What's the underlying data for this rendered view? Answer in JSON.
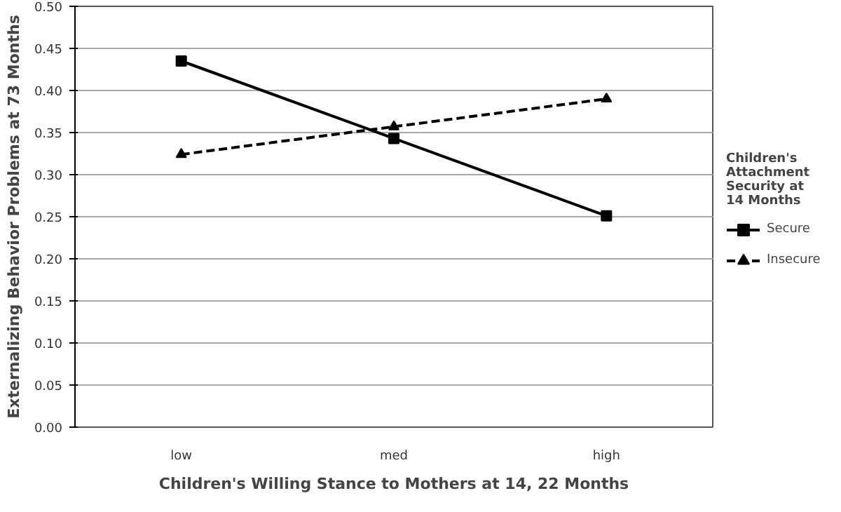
{
  "chart_data": {
    "type": "line",
    "xlabel": "Children's Willing Stance to Mothers at 14, 22 Months",
    "ylabel": "Externalizing Behavior Problems at 73 Months",
    "legend_title": "Children's Attachment Security at 14 Months",
    "categories": [
      "low",
      "med",
      "high"
    ],
    "series": [
      {
        "name": "Secure",
        "color": "#000000",
        "values": [
          0.435,
          0.343,
          0.251
        ],
        "marker": "square",
        "line_style": "solid"
      },
      {
        "name": "Insecure",
        "color": "#000000",
        "values": [
          0.324,
          0.357,
          0.39
        ],
        "marker": "triangle",
        "line_style": "dashed"
      }
    ],
    "ylim": [
      0,
      0.5
    ],
    "yticks": [
      {
        "value": 0,
        "label": "0.00"
      },
      0.05,
      {
        "value": 0.1,
        "label": "0.10"
      },
      0.15,
      {
        "value": 0.2,
        "label": "0.20"
      },
      0.25,
      {
        "value": 0.3,
        "label": "0.30"
      },
      0.35,
      {
        "value": 0.4,
        "label": "0.40"
      },
      0.45,
      {
        "value": 0.5,
        "label": "0.50"
      }
    ],
    "grid": "y",
    "legend": "right"
  }
}
